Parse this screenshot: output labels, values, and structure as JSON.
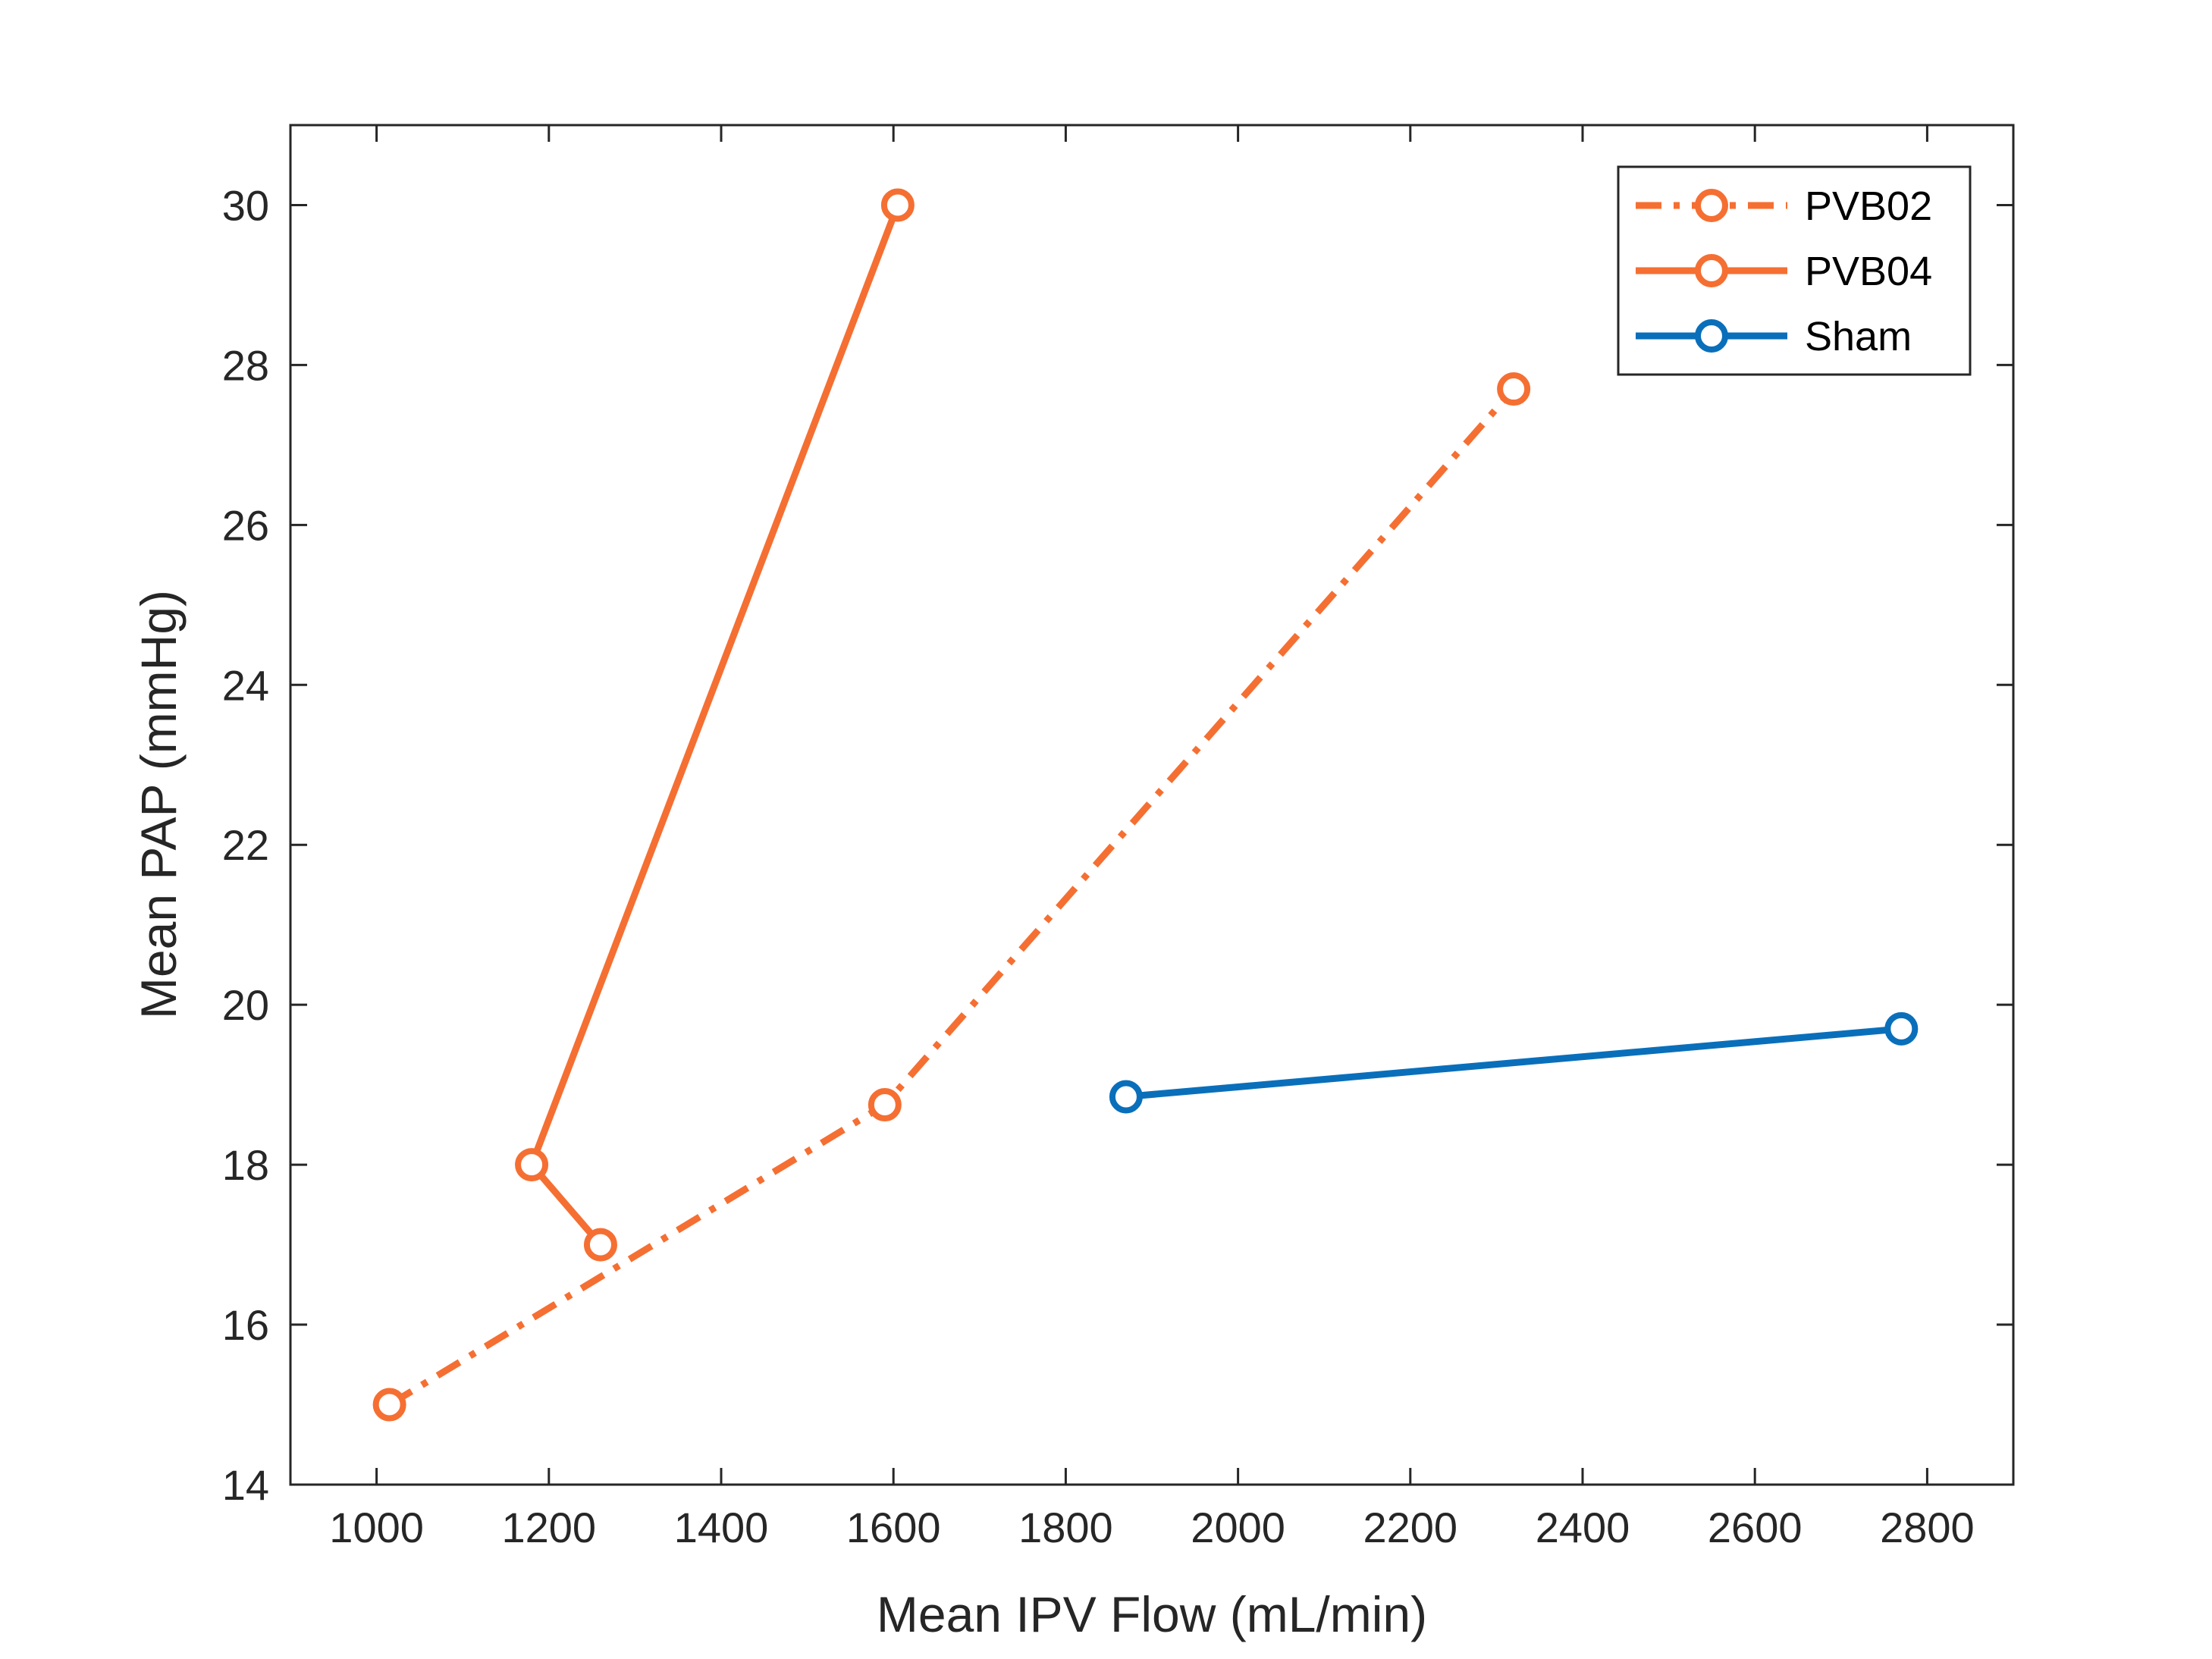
{
  "chart_data": {
    "type": "line",
    "xlabel": "Mean IPV Flow (mL/min)",
    "ylabel": "Mean PAP (mmHg)",
    "xlim": [
      900,
      2900
    ],
    "ylim": [
      14,
      31
    ],
    "xticks": [
      1000,
      1200,
      1400,
      1600,
      1800,
      2000,
      2200,
      2400,
      2600,
      2800
    ],
    "yticks": [
      14,
      16,
      18,
      20,
      22,
      24,
      26,
      28,
      30
    ],
    "grid": false,
    "legend_position": "top-right",
    "series": [
      {
        "name": "PVB02",
        "line_style": "dash-dot",
        "marker": "circle",
        "color": "#f56f32",
        "x": [
          1015,
          1590,
          2320
        ],
        "y": [
          15.0,
          18.75,
          27.7
        ]
      },
      {
        "name": "PVB04",
        "line_style": "solid",
        "marker": "circle",
        "color": "#f56f32",
        "x": [
          1260,
          1180,
          1605
        ],
        "y": [
          17.0,
          18.0,
          30.0
        ]
      },
      {
        "name": "Sham",
        "line_style": "solid",
        "marker": "circle",
        "color": "#0a6fba",
        "x": [
          1870,
          2770
        ],
        "y": [
          18.85,
          19.7
        ]
      }
    ]
  }
}
